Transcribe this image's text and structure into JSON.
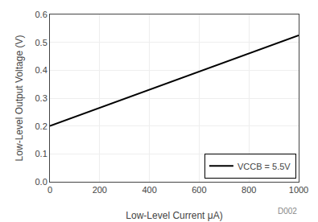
{
  "chart_data": {
    "type": "line",
    "x": [
      0,
      1000
    ],
    "series": [
      {
        "name": "VCCB = 5.5V",
        "color": "#000000",
        "values": [
          0.2,
          0.525
        ]
      }
    ],
    "xlabel": "Low-Level Current μA)",
    "ylabel": "Low-Level Output Voltage (V)",
    "xlim": [
      0,
      1000
    ],
    "ylim": [
      0,
      0.6
    ],
    "xticks": [
      0,
      200,
      400,
      600,
      800,
      1000
    ],
    "yticks": [
      {
        "value": 0,
        "label": "0.0"
      },
      0.1,
      0.2,
      0.3,
      0.4,
      0.5,
      0.6
    ],
    "grid": true,
    "legend": "lower right",
    "annotations": [
      "D002"
    ]
  }
}
